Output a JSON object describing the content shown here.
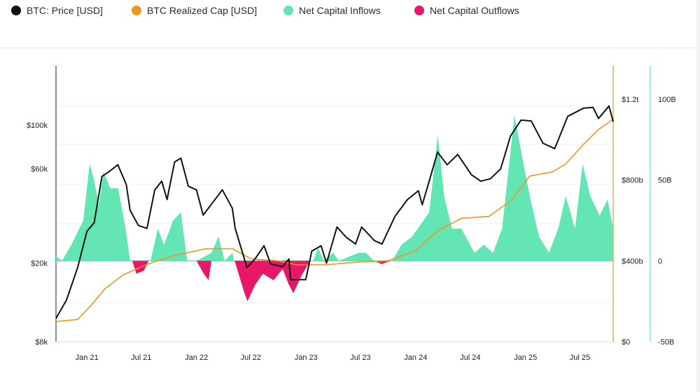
{
  "legend": {
    "items": [
      {
        "label": "BTC: Price [USD]",
        "color": "#111111"
      },
      {
        "label": "BTC Realized Cap [USD]",
        "color": "#f0961e"
      },
      {
        "label": "Net Capital Inflows",
        "color": "#63e6b4"
      },
      {
        "label": "Net Capital Outflows",
        "color": "#e8176a"
      }
    ]
  },
  "chart_data": {
    "type": "line",
    "title": "",
    "x_axis": {
      "type": "date",
      "range": [
        "2020-09-20",
        "2025-10-20"
      ],
      "ticks": [
        {
          "label": "Jan 21",
          "date": "2021-01-01"
        },
        {
          "label": "Jul 21",
          "date": "2021-07-01"
        },
        {
          "label": "Jan 22",
          "date": "2022-01-01"
        },
        {
          "label": "Jul 22",
          "date": "2022-07-01"
        },
        {
          "label": "Jan 23",
          "date": "2023-01-01"
        },
        {
          "label": "Jul 23",
          "date": "2023-07-01"
        },
        {
          "label": "Jan 24",
          "date": "2024-01-01"
        },
        {
          "label": "Jul 24",
          "date": "2024-07-01"
        },
        {
          "label": "Jan 25",
          "date": "2025-01-01"
        },
        {
          "label": "Jul 25",
          "date": "2025-07-01"
        }
      ]
    },
    "y_axes": {
      "price": {
        "scale": "log",
        "range": [
          8000,
          200000
        ],
        "ticks": [
          {
            "label": "$8k",
            "value": 8000
          },
          {
            "label": "$20k",
            "value": 20000
          },
          {
            "label": "$60k",
            "value": 60000
          },
          {
            "label": "$100k",
            "value": 100000
          }
        ]
      },
      "realized_cap": {
        "scale": "linear",
        "range": [
          0,
          1200000000000.0
        ],
        "ticks": [
          {
            "label": "$0",
            "value": 0
          },
          {
            "label": "$400b",
            "value": 400000000000.0
          },
          {
            "label": "$800b",
            "value": 800000000000.0
          },
          {
            "label": "$1.2t",
            "value": 1200000000000.0
          }
        ]
      },
      "net_flow": {
        "scale": "linear",
        "range": [
          -50000000000.0,
          100000000000.0
        ],
        "ticks": [
          {
            "label": "-50B",
            "value": -50000000000.0
          },
          {
            "label": "0",
            "value": 0
          },
          {
            "label": "50B",
            "value": 50000000000.0
          },
          {
            "label": "100B",
            "value": 100000000000.0
          }
        ]
      }
    },
    "grid": true,
    "legend_position": "top",
    "series": [
      {
        "name": "BTC: Price [USD]",
        "axis": "price",
        "color": "#111111",
        "points": [
          [
            "2020-09-20",
            10500
          ],
          [
            "2020-10-25",
            13000
          ],
          [
            "2020-12-01",
            19000
          ],
          [
            "2021-01-01",
            29000
          ],
          [
            "2021-01-25",
            32000
          ],
          [
            "2021-02-20",
            55000
          ],
          [
            "2021-03-15",
            58000
          ],
          [
            "2021-04-14",
            63000
          ],
          [
            "2021-05-12",
            50000
          ],
          [
            "2021-05-25",
            37000
          ],
          [
            "2021-06-22",
            31000
          ],
          [
            "2021-07-20",
            30000
          ],
          [
            "2021-08-15",
            47000
          ],
          [
            "2021-09-07",
            52000
          ],
          [
            "2021-09-25",
            42000
          ],
          [
            "2021-10-20",
            65000
          ],
          [
            "2021-11-10",
            68000
          ],
          [
            "2021-12-05",
            49000
          ],
          [
            "2022-01-01",
            47000
          ],
          [
            "2022-01-23",
            35000
          ],
          [
            "2022-03-28",
            47000
          ],
          [
            "2022-04-30",
            38000
          ],
          [
            "2022-05-10",
            30000
          ],
          [
            "2022-06-18",
            19000
          ],
          [
            "2022-07-15",
            21000
          ],
          [
            "2022-08-14",
            24500
          ],
          [
            "2022-09-05",
            19800
          ],
          [
            "2022-10-15",
            19200
          ],
          [
            "2022-11-05",
            21000
          ],
          [
            "2022-11-10",
            16500
          ],
          [
            "2022-12-31",
            16500
          ],
          [
            "2023-01-20",
            23000
          ],
          [
            "2023-02-20",
            24500
          ],
          [
            "2023-03-10",
            20000
          ],
          [
            "2023-04-14",
            30500
          ],
          [
            "2023-05-15",
            27000
          ],
          [
            "2023-06-15",
            25000
          ],
          [
            "2023-07-05",
            30500
          ],
          [
            "2023-08-17",
            26000
          ],
          [
            "2023-09-11",
            25000
          ],
          [
            "2023-10-24",
            34500
          ],
          [
            "2023-12-05",
            42000
          ],
          [
            "2024-01-10",
            46500
          ],
          [
            "2024-01-23",
            39500
          ],
          [
            "2024-02-15",
            52000
          ],
          [
            "2024-03-14",
            73000
          ],
          [
            "2024-04-15",
            63000
          ],
          [
            "2024-05-20",
            71000
          ],
          [
            "2024-07-05",
            56000
          ],
          [
            "2024-08-05",
            52000
          ],
          [
            "2024-09-06",
            53500
          ],
          [
            "2024-10-10",
            60000
          ],
          [
            "2024-11-12",
            88000
          ],
          [
            "2024-12-17",
            106000
          ],
          [
            "2025-01-20",
            105000
          ],
          [
            "2025-02-28",
            81000
          ],
          [
            "2025-04-08",
            76000
          ],
          [
            "2025-05-22",
            111000
          ],
          [
            "2025-07-14",
            122000
          ],
          [
            "2025-08-14",
            123000
          ],
          [
            "2025-09-01",
            108000
          ],
          [
            "2025-10-06",
            125000
          ],
          [
            "2025-10-20",
            104000
          ]
        ]
      },
      {
        "name": "BTC Realized Cap [USD]",
        "axis": "realized_cap",
        "color": "#f0961e",
        "points": [
          [
            "2020-09-20",
            100000000000.0
          ],
          [
            "2020-12-01",
            110000000000.0
          ],
          [
            "2021-01-15",
            180000000000.0
          ],
          [
            "2021-03-01",
            260000000000.0
          ],
          [
            "2021-05-01",
            330000000000.0
          ],
          [
            "2021-07-15",
            380000000000.0
          ],
          [
            "2021-10-01",
            420000000000.0
          ],
          [
            "2021-12-01",
            440000000000.0
          ],
          [
            "2022-02-01",
            460000000000.0
          ],
          [
            "2022-05-01",
            460000000000.0
          ],
          [
            "2022-07-01",
            410000000000.0
          ],
          [
            "2022-10-01",
            400000000000.0
          ],
          [
            "2022-12-01",
            380000000000.0
          ],
          [
            "2023-03-01",
            380000000000.0
          ],
          [
            "2023-07-01",
            395000000000.0
          ],
          [
            "2023-10-01",
            400000000000.0
          ],
          [
            "2024-01-01",
            450000000000.0
          ],
          [
            "2024-03-15",
            550000000000.0
          ],
          [
            "2024-06-01",
            610000000000.0
          ],
          [
            "2024-09-01",
            620000000000.0
          ],
          [
            "2024-11-15",
            700000000000.0
          ],
          [
            "2025-01-15",
            820000000000.0
          ],
          [
            "2025-04-01",
            840000000000.0
          ],
          [
            "2025-05-15",
            880000000000.0
          ],
          [
            "2025-07-15",
            980000000000.0
          ],
          [
            "2025-09-01",
            1050000000000.0
          ],
          [
            "2025-10-20",
            1100000000000.0
          ]
        ]
      },
      {
        "name": "Net Capital Inflows",
        "axis": "net_flow",
        "color": "#63e6b4",
        "points": [
          [
            "2020-09-20",
            3000000000.0
          ],
          [
            "2020-10-10",
            0
          ],
          [
            "2020-11-10",
            10000000000.0
          ],
          [
            "2020-12-20",
            25000000000.0
          ],
          [
            "2021-01-10",
            60000000000.0
          ],
          [
            "2021-01-25",
            50000000000.0
          ],
          [
            "2021-02-10",
            35000000000.0
          ],
          [
            "2021-02-25",
            55000000000.0
          ],
          [
            "2021-03-20",
            45000000000.0
          ],
          [
            "2021-04-15",
            45000000000.0
          ],
          [
            "2021-05-10",
            20000000000.0
          ],
          [
            "2021-05-25",
            0
          ],
          [
            "2021-08-01",
            0
          ],
          [
            "2021-08-25",
            20000000000.0
          ],
          [
            "2021-09-15",
            10000000000.0
          ],
          [
            "2021-10-15",
            25000000000.0
          ],
          [
            "2021-11-10",
            30000000000.0
          ],
          [
            "2021-12-01",
            0
          ],
          [
            "2022-01-01",
            0
          ],
          [
            "2022-02-20",
            5000000000.0
          ],
          [
            "2022-03-15",
            15000000000.0
          ],
          [
            "2022-04-05",
            0
          ],
          [
            "2022-05-01",
            5000000000.0
          ],
          [
            "2022-05-05",
            0
          ],
          [
            "2023-01-25",
            0
          ],
          [
            "2023-02-10",
            8000000000.0
          ],
          [
            "2023-03-01",
            0
          ],
          [
            "2023-04-01",
            5000000000.0
          ],
          [
            "2023-04-20",
            0
          ],
          [
            "2023-06-25",
            5000000000.0
          ],
          [
            "2023-07-20",
            5000000000.0
          ],
          [
            "2023-08-15",
            0
          ],
          [
            "2023-10-15",
            0
          ],
          [
            "2023-11-15",
            10000000000.0
          ],
          [
            "2023-12-20",
            15000000000.0
          ],
          [
            "2024-02-15",
            30000000000.0
          ],
          [
            "2024-03-15",
            78000000000.0
          ],
          [
            "2024-04-05",
            40000000000.0
          ],
          [
            "2024-05-01",
            20000000000.0
          ],
          [
            "2024-06-01",
            20000000000.0
          ],
          [
            "2024-07-15",
            5000000000.0
          ],
          [
            "2024-08-15",
            10000000000.0
          ],
          [
            "2024-09-15",
            5000000000.0
          ],
          [
            "2024-10-15",
            20000000000.0
          ],
          [
            "2024-11-25",
            90000000000.0
          ],
          [
            "2024-12-15",
            70000000000.0
          ],
          [
            "2025-01-15",
            40000000000.0
          ],
          [
            "2025-02-15",
            15000000000.0
          ],
          [
            "2025-03-20",
            5000000000.0
          ],
          [
            "2025-04-20",
            20000000000.0
          ],
          [
            "2025-05-15",
            40000000000.0
          ],
          [
            "2025-06-15",
            20000000000.0
          ],
          [
            "2025-07-10",
            60000000000.0
          ],
          [
            "2025-08-05",
            40000000000.0
          ],
          [
            "2025-09-05",
            28000000000.0
          ],
          [
            "2025-10-01",
            38000000000.0
          ],
          [
            "2025-10-20",
            20000000000.0
          ]
        ]
      },
      {
        "name": "Net Capital Outflows",
        "axis": "net_flow",
        "color": "#e8176a",
        "points": [
          [
            "2021-06-01",
            0
          ],
          [
            "2021-06-15",
            -8000000000.0
          ],
          [
            "2021-07-10",
            -6000000000.0
          ],
          [
            "2021-07-25",
            0
          ],
          [
            "2022-01-01",
            0
          ],
          [
            "2022-01-25",
            -8000000000.0
          ],
          [
            "2022-02-10",
            -12000000000.0
          ],
          [
            "2022-02-20",
            0
          ],
          [
            "2022-05-08",
            0
          ],
          [
            "2022-06-10",
            -20000000000.0
          ],
          [
            "2022-06-20",
            -25000000000.0
          ],
          [
            "2022-07-15",
            -15000000000.0
          ],
          [
            "2022-08-10",
            -8000000000.0
          ],
          [
            "2022-09-15",
            -12000000000.0
          ],
          [
            "2022-10-15",
            -5000000000.0
          ],
          [
            "2022-11-05",
            -15000000000.0
          ],
          [
            "2022-11-20",
            -20000000000.0
          ],
          [
            "2022-12-20",
            -8000000000.0
          ],
          [
            "2023-01-15",
            0
          ],
          [
            "2023-08-15",
            0
          ],
          [
            "2023-09-10",
            -2000000000.0
          ],
          [
            "2023-10-10",
            0
          ]
        ]
      }
    ]
  }
}
